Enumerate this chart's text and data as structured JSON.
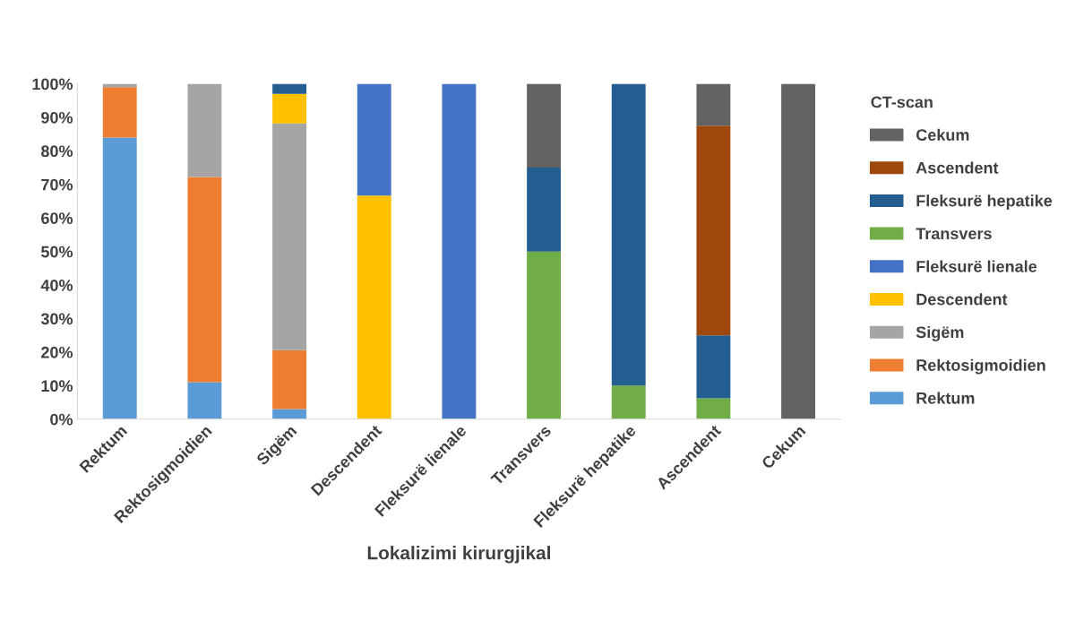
{
  "chart_data": {
    "type": "bar",
    "stacked": true,
    "xlabel": "Lokalizimi kirurgjikal",
    "legend_title": "CT-scan",
    "legend": "right",
    "grid": false,
    "categories": [
      "Rektum",
      "Rektosigmoidien",
      "Sigëm",
      "Descendent",
      "Fleksurë lienale",
      "Transvers",
      "Fleksurë hepatike",
      "Ascendent",
      "Cekum"
    ],
    "ylim": [
      0,
      100
    ],
    "yticks": [
      {
        "value": 0,
        "label": "0%"
      },
      {
        "value": 10,
        "label": "10%"
      },
      {
        "value": 20,
        "label": "20%"
      },
      {
        "value": 30,
        "label": "30%"
      },
      {
        "value": 40,
        "label": "40%"
      },
      {
        "value": 50,
        "label": "50%"
      },
      {
        "value": 60,
        "label": "60%"
      },
      {
        "value": 70,
        "label": "70%"
      },
      {
        "value": 80,
        "label": "80%"
      },
      {
        "value": 90,
        "label": "90%"
      },
      {
        "value": 100,
        "label": "100%"
      }
    ],
    "series": [
      {
        "name": "Rektum",
        "color": "#5b9bd5",
        "values": [
          84,
          11,
          3,
          0,
          0,
          0,
          0,
          0,
          0
        ]
      },
      {
        "name": "Rektosigmoidien",
        "color": "#ed7d31",
        "values": [
          15,
          61.2,
          17.6,
          0,
          0,
          0,
          0,
          0,
          0
        ]
      },
      {
        "name": "Sigëm",
        "color": "#a5a5a5",
        "values": [
          1,
          27.8,
          67.6,
          0,
          0,
          0,
          0,
          0,
          0
        ]
      },
      {
        "name": "Descendent",
        "color": "#ffc000",
        "values": [
          0,
          0,
          8.8,
          66.7,
          0,
          0,
          0,
          0,
          0
        ]
      },
      {
        "name": "Fleksurë lienale",
        "color": "#4472c4",
        "values": [
          0,
          0,
          0,
          33.3,
          100,
          0,
          0,
          0,
          0
        ]
      },
      {
        "name": "Transvers",
        "color": "#70ad47",
        "values": [
          0,
          0,
          0,
          0,
          0,
          50,
          10,
          6.2,
          0
        ]
      },
      {
        "name": "Fleksurë hepatike",
        "color": "#255e91",
        "values": [
          0,
          0,
          3,
          0,
          0,
          25,
          90,
          18.8,
          0
        ]
      },
      {
        "name": "Ascendent",
        "color": "#9e480e",
        "values": [
          0,
          0,
          0,
          0,
          0,
          0,
          0,
          62.5,
          0
        ]
      },
      {
        "name": "Cekum",
        "color": "#636363",
        "values": [
          0,
          0,
          0,
          0,
          0,
          25,
          0,
          12.5,
          100
        ]
      }
    ]
  }
}
